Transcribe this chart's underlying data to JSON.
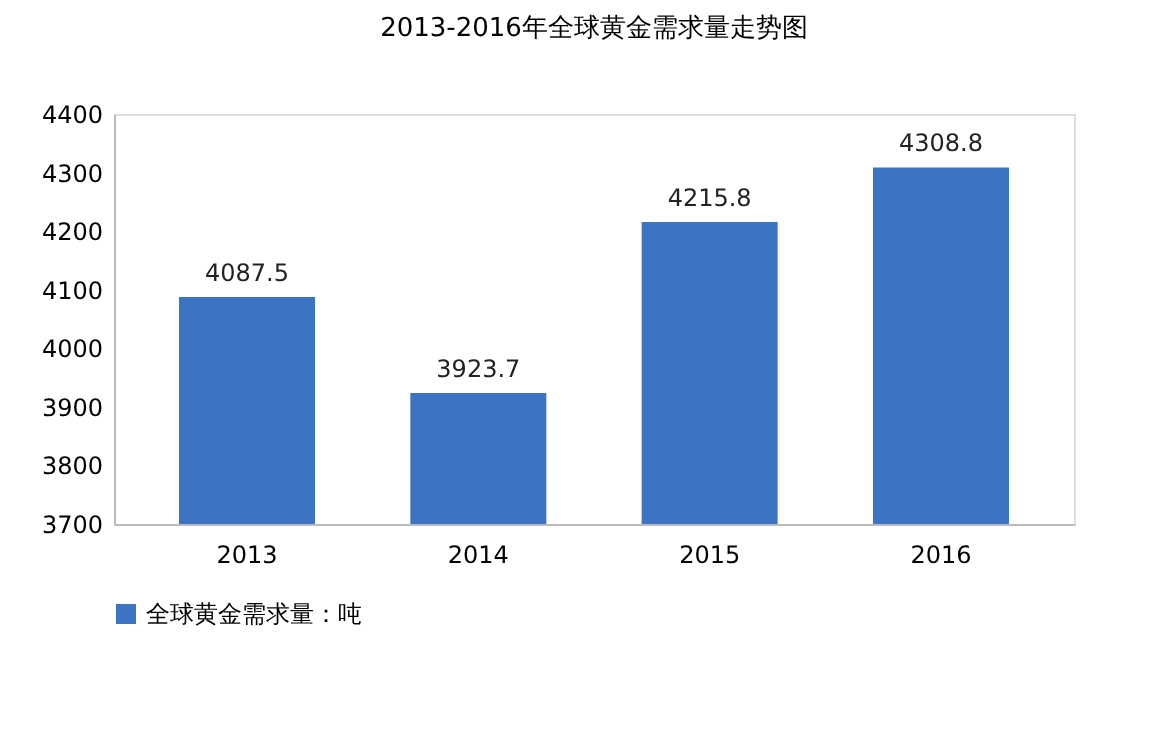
{
  "chart_data": {
    "type": "bar",
    "title": "2013-2016年全球黄金需求量走势图",
    "categories": [
      "2013",
      "2014",
      "2015",
      "2016"
    ],
    "series": [
      {
        "name": "全球黄金需求量：吨",
        "color": "#3b74c2",
        "values": [
          4087.5,
          3923.7,
          4215.8,
          4308.8
        ]
      }
    ],
    "ylim": [
      3700,
      4400
    ],
    "yticks": [
      3700,
      3800,
      3900,
      4000,
      4100,
      4200,
      4300,
      4400
    ],
    "data_labels": true,
    "legend": "bottom"
  }
}
